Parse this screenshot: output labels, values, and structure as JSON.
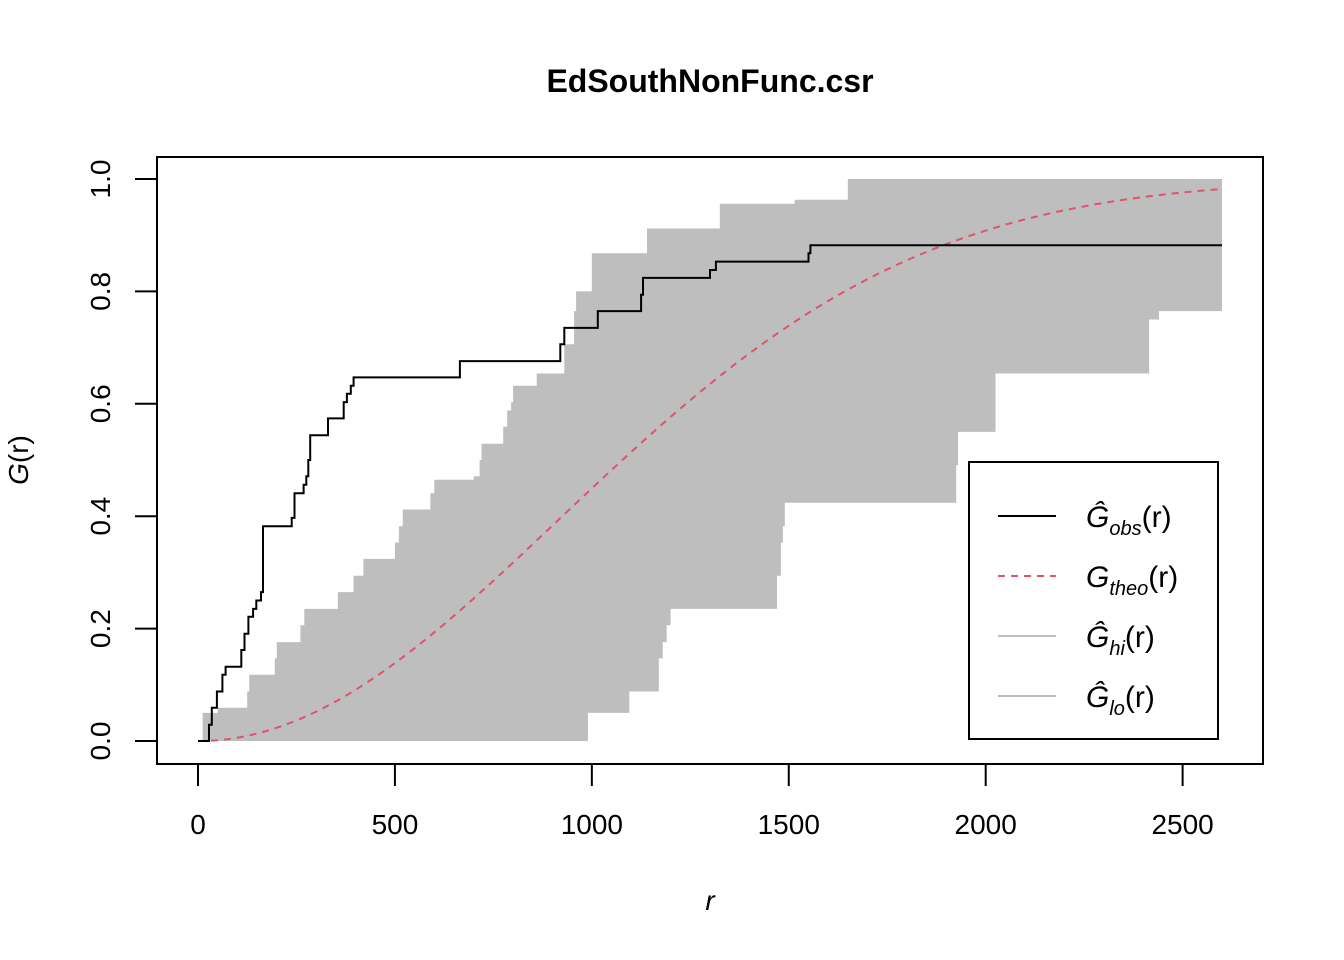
{
  "chart_data": {
    "type": "line",
    "title": "EdSouthNonFunc.csr",
    "xlabel": "r",
    "ylabel_symbol": "G",
    "ylabel_arg": "(r)",
    "xlim": [
      0,
      2600
    ],
    "ylim": [
      0,
      1
    ],
    "xticks": [
      0,
      500,
      1000,
      1500,
      2000,
      2500
    ],
    "xtick_labels": [
      "0",
      "500",
      "1000",
      "1500",
      "2000",
      "2500"
    ],
    "yticks": [
      0,
      0.2,
      0.4,
      0.6,
      0.8,
      1
    ],
    "ytick_labels": [
      "0.0",
      "0.2",
      "0.4",
      "0.6",
      "0.8",
      "1.0"
    ],
    "grid": false,
    "legend_position": "bottom-right",
    "colors": {
      "obs": "#000000",
      "theo": "#DF536B",
      "envelope": "#BEBEBE"
    },
    "series": [
      {
        "key": "obs",
        "legend_symbol": "Ĝ",
        "legend_sub": "obs",
        "legend_arg": "(r)",
        "style": "solid-step",
        "points": [
          [
            0,
            0
          ],
          [
            28,
            0
          ],
          [
            28,
            0.029
          ],
          [
            35,
            0.029
          ],
          [
            35,
            0.059
          ],
          [
            48,
            0.059
          ],
          [
            48,
            0.088
          ],
          [
            62,
            0.088
          ],
          [
            62,
            0.118
          ],
          [
            70,
            0.118
          ],
          [
            70,
            0.132
          ],
          [
            110,
            0.132
          ],
          [
            110,
            0.162
          ],
          [
            118,
            0.162
          ],
          [
            118,
            0.191
          ],
          [
            128,
            0.191
          ],
          [
            128,
            0.221
          ],
          [
            140,
            0.221
          ],
          [
            140,
            0.235
          ],
          [
            148,
            0.235
          ],
          [
            148,
            0.25
          ],
          [
            160,
            0.25
          ],
          [
            160,
            0.265
          ],
          [
            165,
            0.265
          ],
          [
            165,
            0.382
          ],
          [
            238,
            0.382
          ],
          [
            238,
            0.397
          ],
          [
            245,
            0.397
          ],
          [
            245,
            0.441
          ],
          [
            268,
            0.441
          ],
          [
            268,
            0.456
          ],
          [
            275,
            0.456
          ],
          [
            275,
            0.471
          ],
          [
            280,
            0.471
          ],
          [
            280,
            0.5
          ],
          [
            285,
            0.5
          ],
          [
            285,
            0.544
          ],
          [
            330,
            0.544
          ],
          [
            330,
            0.574
          ],
          [
            370,
            0.574
          ],
          [
            370,
            0.603
          ],
          [
            378,
            0.603
          ],
          [
            378,
            0.618
          ],
          [
            388,
            0.618
          ],
          [
            388,
            0.632
          ],
          [
            395,
            0.632
          ],
          [
            395,
            0.647
          ],
          [
            665,
            0.647
          ],
          [
            665,
            0.676
          ],
          [
            920,
            0.676
          ],
          [
            920,
            0.706
          ],
          [
            930,
            0.706
          ],
          [
            930,
            0.735
          ],
          [
            1015,
            0.735
          ],
          [
            1015,
            0.765
          ],
          [
            1125,
            0.765
          ],
          [
            1125,
            0.794
          ],
          [
            1130,
            0.794
          ],
          [
            1130,
            0.824
          ],
          [
            1300,
            0.824
          ],
          [
            1300,
            0.838
          ],
          [
            1315,
            0.838
          ],
          [
            1315,
            0.853
          ],
          [
            1550,
            0.853
          ],
          [
            1550,
            0.868
          ],
          [
            1555,
            0.868
          ],
          [
            1555,
            0.882
          ],
          [
            2600,
            0.882
          ]
        ]
      },
      {
        "key": "theo",
        "legend_symbol": "G",
        "legend_sub": "theo",
        "legend_arg": "(r)",
        "style": "dashed",
        "function": "1-exp(-lambda*pi*r^2)",
        "lambda": 1.9e-07
      },
      {
        "key": "hi",
        "legend_symbol": "Ĝ",
        "legend_sub": "hi",
        "legend_arg": "(r)",
        "style": "envelope-upper",
        "points": [
          [
            0,
            0
          ],
          [
            12,
            0
          ],
          [
            12,
            0.05
          ],
          [
            50,
            0.05
          ],
          [
            50,
            0.059
          ],
          [
            125,
            0.059
          ],
          [
            125,
            0.088
          ],
          [
            130,
            0.088
          ],
          [
            130,
            0.118
          ],
          [
            195,
            0.118
          ],
          [
            195,
            0.147
          ],
          [
            200,
            0.147
          ],
          [
            200,
            0.176
          ],
          [
            260,
            0.176
          ],
          [
            260,
            0.206
          ],
          [
            270,
            0.206
          ],
          [
            270,
            0.235
          ],
          [
            355,
            0.235
          ],
          [
            355,
            0.265
          ],
          [
            395,
            0.265
          ],
          [
            395,
            0.294
          ],
          [
            420,
            0.294
          ],
          [
            420,
            0.324
          ],
          [
            500,
            0.324
          ],
          [
            500,
            0.353
          ],
          [
            510,
            0.353
          ],
          [
            510,
            0.382
          ],
          [
            520,
            0.382
          ],
          [
            520,
            0.412
          ],
          [
            590,
            0.412
          ],
          [
            590,
            0.441
          ],
          [
            600,
            0.441
          ],
          [
            600,
            0.465
          ],
          [
            700,
            0.465
          ],
          [
            700,
            0.471
          ],
          [
            715,
            0.471
          ],
          [
            715,
            0.5
          ],
          [
            720,
            0.5
          ],
          [
            720,
            0.529
          ],
          [
            775,
            0.529
          ],
          [
            775,
            0.559
          ],
          [
            785,
            0.559
          ],
          [
            785,
            0.588
          ],
          [
            795,
            0.588
          ],
          [
            795,
            0.603
          ],
          [
            800,
            0.603
          ],
          [
            800,
            0.632
          ],
          [
            860,
            0.632
          ],
          [
            860,
            0.654
          ],
          [
            930,
            0.654
          ],
          [
            930,
            0.706
          ],
          [
            955,
            0.706
          ],
          [
            955,
            0.765
          ],
          [
            960,
            0.765
          ],
          [
            960,
            0.8
          ],
          [
            1000,
            0.8
          ],
          [
            1000,
            0.868
          ],
          [
            1140,
            0.868
          ],
          [
            1140,
            0.912
          ],
          [
            1325,
            0.912
          ],
          [
            1325,
            0.956
          ],
          [
            1515,
            0.956
          ],
          [
            1515,
            0.963
          ],
          [
            1650,
            0.963
          ],
          [
            1650,
            1
          ],
          [
            2600,
            1
          ]
        ]
      },
      {
        "key": "lo",
        "legend_symbol": "Ĝ",
        "legend_sub": "lo",
        "legend_arg": "(r)",
        "style": "envelope-lower",
        "points": [
          [
            0,
            0
          ],
          [
            990,
            0
          ],
          [
            990,
            0.05
          ],
          [
            1095,
            0.05
          ],
          [
            1095,
            0.088
          ],
          [
            1170,
            0.088
          ],
          [
            1170,
            0.147
          ],
          [
            1180,
            0.147
          ],
          [
            1180,
            0.176
          ],
          [
            1190,
            0.176
          ],
          [
            1190,
            0.206
          ],
          [
            1200,
            0.206
          ],
          [
            1200,
            0.235
          ],
          [
            1470,
            0.235
          ],
          [
            1470,
            0.294
          ],
          [
            1480,
            0.294
          ],
          [
            1480,
            0.353
          ],
          [
            1485,
            0.353
          ],
          [
            1485,
            0.382
          ],
          [
            1490,
            0.382
          ],
          [
            1490,
            0.424
          ],
          [
            1925,
            0.424
          ],
          [
            1925,
            0.491
          ],
          [
            1930,
            0.491
          ],
          [
            1930,
            0.55
          ],
          [
            2025,
            0.55
          ],
          [
            2025,
            0.654
          ],
          [
            2415,
            0.654
          ],
          [
            2415,
            0.75
          ],
          [
            2440,
            0.75
          ],
          [
            2440,
            0.765
          ],
          [
            2600,
            0.765
          ]
        ]
      }
    ]
  }
}
